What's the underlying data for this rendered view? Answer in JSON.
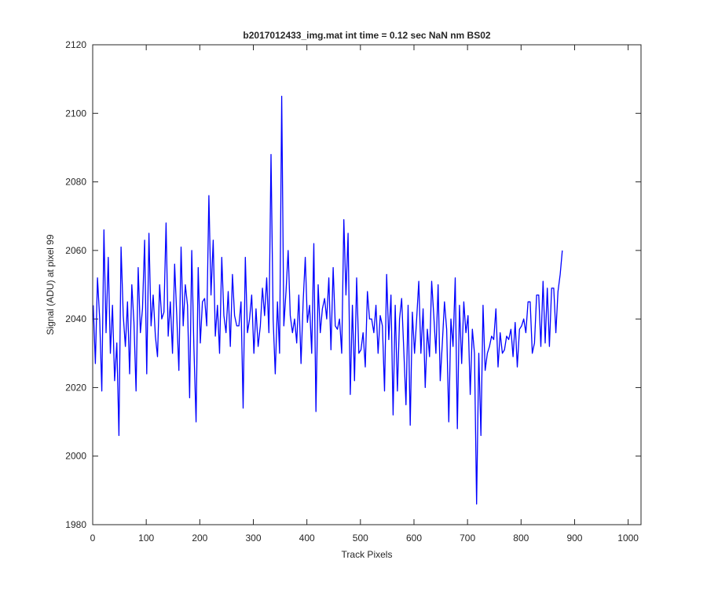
{
  "chart_data": {
    "type": "line",
    "title": "b2017012433_img.mat int time = 0.12 sec  NaN nm BS02",
    "xlabel": "Track Pixels",
    "ylabel": "Signal (ADU) at pixel 99",
    "xlim": [
      0,
      1024
    ],
    "ylim": [
      1980,
      2120
    ],
    "xticks": [
      0,
      100,
      200,
      300,
      400,
      500,
      600,
      700,
      800,
      900,
      1000
    ],
    "yticks": [
      1980,
      2000,
      2020,
      2040,
      2060,
      2080,
      2100,
      2120
    ],
    "grid": false,
    "box": true,
    "series": [
      {
        "color": "#0000ff",
        "x_start": 1,
        "x_step": 4,
        "values": [
          2044,
          2027,
          2052,
          2040,
          2019,
          2066,
          2036,
          2058,
          2030,
          2044,
          2022,
          2033,
          2006,
          2061,
          2041,
          2032,
          2045,
          2024,
          2050,
          2039,
          2019,
          2055,
          2036,
          2043,
          2063,
          2024,
          2065,
          2038,
          2047,
          2035,
          2029,
          2050,
          2040,
          2042,
          2068,
          2035,
          2045,
          2030,
          2056,
          2041,
          2025,
          2061,
          2038,
          2050,
          2044,
          2017,
          2060,
          2032,
          2010,
          2055,
          2033,
          2045,
          2046,
          2038,
          2076,
          2047,
          2063,
          2035,
          2044,
          2030,
          2058,
          2041,
          2036,
          2048,
          2032,
          2053,
          2041,
          2038,
          2038,
          2045,
          2014,
          2058,
          2036,
          2040,
          2047,
          2030,
          2043,
          2032,
          2038,
          2049,
          2041,
          2052,
          2036,
          2088,
          2040,
          2024,
          2045,
          2030,
          2105,
          2038,
          2048,
          2060,
          2041,
          2036,
          2040,
          2033,
          2047,
          2027,
          2045,
          2058,
          2039,
          2044,
          2030,
          2062,
          2013,
          2050,
          2036,
          2043,
          2046,
          2040,
          2052,
          2031,
          2055,
          2038,
          2037,
          2040,
          2030,
          2069,
          2047,
          2065,
          2018,
          2044,
          2022,
          2052,
          2030,
          2031,
          2036,
          2026,
          2048,
          2040,
          2040,
          2036,
          2044,
          2030,
          2041,
          2038,
          2019,
          2053,
          2034,
          2047,
          2012,
          2044,
          2019,
          2040,
          2046,
          2031,
          2015,
          2044,
          2009,
          2042,
          2030,
          2040,
          2051,
          2030,
          2043,
          2020,
          2037,
          2029,
          2051,
          2041,
          2030,
          2050,
          2022,
          2033,
          2045,
          2037,
          2010,
          2040,
          2032,
          2052,
          2008,
          2044,
          2027,
          2045,
          2036,
          2041,
          2018,
          2037,
          2030,
          1986,
          2030,
          2006,
          2044,
          2025,
          2030,
          2032,
          2035,
          2034,
          2043,
          2026,
          2036,
          2030,
          2031,
          2035,
          2034,
          2037,
          2029,
          2039,
          2026,
          2037,
          2038,
          2040,
          2036,
          2045,
          2045,
          2030,
          2033,
          2047,
          2047,
          2032,
          2051,
          2033,
          2049,
          2032,
          2049,
          2049,
          2036,
          2048,
          2053,
          2060
        ]
      }
    ]
  }
}
